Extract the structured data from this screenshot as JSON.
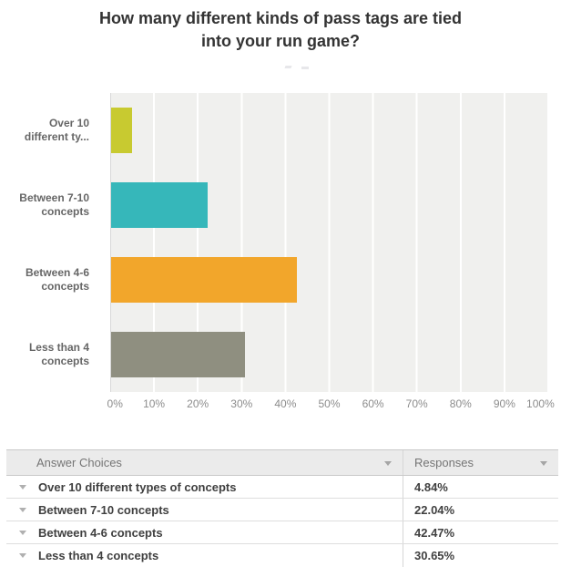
{
  "title": "How many different kinds of pass tags are tied into your run game?",
  "chart_data": {
    "type": "bar",
    "orientation": "horizontal",
    "title": "How many different kinds of pass tags are tied into your run game?",
    "categories": [
      "Over 10\ndifferent ty...",
      "Between 7-10\nconcepts",
      "Between 4-6\nconcepts",
      "Less than 4\nconcepts"
    ],
    "categories_full": [
      "Over 10 different types of concepts",
      "Between 7-10 concepts",
      "Between 4-6 concepts",
      "Less than 4 concepts"
    ],
    "values": [
      4.84,
      22.04,
      42.47,
      30.65
    ],
    "bar_colors": [
      "#c8ca30",
      "#36b7ba",
      "#f2a62b",
      "#8f8f80"
    ],
    "x_ticks": [
      "0%",
      "10%",
      "20%",
      "30%",
      "40%",
      "50%",
      "60%",
      "70%",
      "80%",
      "90%",
      "100%"
    ],
    "xlim": [
      0,
      100
    ],
    "xlabel": "",
    "ylabel": "",
    "grid": "vertical-white-lines",
    "plot_background": "#f0f0ee",
    "legend": "none"
  },
  "table": {
    "columns": {
      "answer": "Answer Choices",
      "responses": "Responses"
    },
    "rows": [
      {
        "choice": "Over 10 different types of concepts",
        "response": "4.84%"
      },
      {
        "choice": "Between 7-10 concepts",
        "response": "22.04%"
      },
      {
        "choice": "Between 4-6 concepts",
        "response": "42.47%"
      },
      {
        "choice": "Less than 4 concepts",
        "response": "30.65%"
      }
    ]
  },
  "icons": {
    "column_sort": "caret-down-icon",
    "row_expand": "caret-down-icon"
  },
  "colors": {
    "title_text": "#333333",
    "category_text": "#666666",
    "axis_text": "#8c8c8c",
    "table_header_bg": "#ebebeb",
    "table_header_text": "#757575",
    "table_row_text": "#404040",
    "border": "#d6d6d6"
  }
}
